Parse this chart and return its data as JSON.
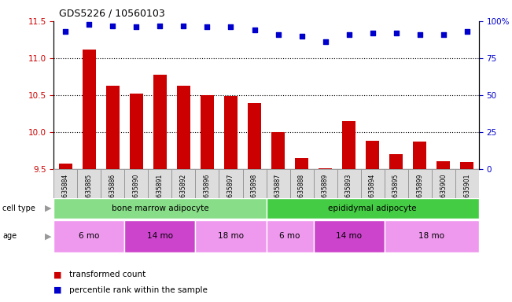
{
  "title": "GDS5226 / 10560103",
  "samples": [
    "GSM635884",
    "GSM635885",
    "GSM635886",
    "GSM635890",
    "GSM635891",
    "GSM635892",
    "GSM635896",
    "GSM635897",
    "GSM635898",
    "GSM635887",
    "GSM635888",
    "GSM635889",
    "GSM635893",
    "GSM635894",
    "GSM635895",
    "GSM635899",
    "GSM635900",
    "GSM635901"
  ],
  "bar_values": [
    9.58,
    11.12,
    10.63,
    10.52,
    10.78,
    10.63,
    10.5,
    10.49,
    10.39,
    10.0,
    9.65,
    9.51,
    10.15,
    9.88,
    9.7,
    9.87,
    9.61,
    9.6
  ],
  "percentile_values": [
    93,
    98,
    97,
    96,
    97,
    97,
    96,
    96,
    94,
    91,
    90,
    86,
    91,
    92,
    92,
    91,
    91,
    93
  ],
  "ylim_left": [
    9.5,
    11.5
  ],
  "ylim_right": [
    0,
    100
  ],
  "yticks_left": [
    9.5,
    10.0,
    10.5,
    11.0,
    11.5
  ],
  "yticks_right": [
    0,
    25,
    50,
    75,
    100
  ],
  "bar_color": "#cc0000",
  "dot_color": "#0000cc",
  "cell_type_groups": [
    {
      "label": "bone marrow adipocyte",
      "start": 0,
      "end": 9,
      "color": "#88dd88"
    },
    {
      "label": "epididymal adipocyte",
      "start": 9,
      "end": 18,
      "color": "#44cc44"
    }
  ],
  "age_groups": [
    {
      "label": "6 mo",
      "start": 0,
      "end": 3,
      "color": "#ee99ee"
    },
    {
      "label": "14 mo",
      "start": 3,
      "end": 6,
      "color": "#cc44cc"
    },
    {
      "label": "18 mo",
      "start": 6,
      "end": 9,
      "color": "#ee99ee"
    },
    {
      "label": "6 mo",
      "start": 9,
      "end": 11,
      "color": "#ee99ee"
    },
    {
      "label": "14 mo",
      "start": 11,
      "end": 14,
      "color": "#cc44cc"
    },
    {
      "label": "18 mo",
      "start": 14,
      "end": 18,
      "color": "#ee99ee"
    }
  ],
  "legend_items": [
    {
      "label": "transformed count",
      "color": "#cc0000"
    },
    {
      "label": "percentile rank within the sample",
      "color": "#0000cc"
    }
  ],
  "tick_label_color_left": "#cc0000",
  "tick_label_color_right": "#0000cc",
  "grid_dotted_at": [
    10.0,
    10.5,
    11.0
  ],
  "xticklabel_bg": "#dddddd"
}
